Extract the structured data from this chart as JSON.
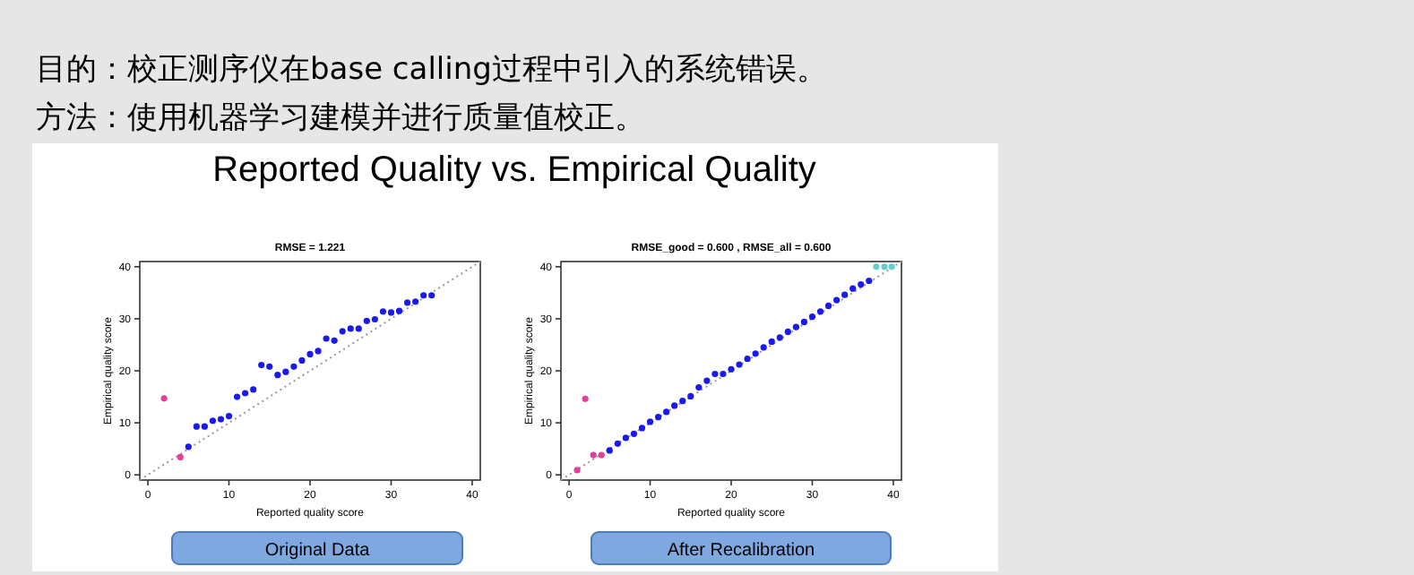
{
  "chart_data": [
    {
      "type": "scatter",
      "title": "Reported Quality vs. Empirical Quality",
      "subtitle": "RMSE = 1.221",
      "xlabel": "Reported quality score",
      "ylabel": "Empirical quality score",
      "annotations": [
        "目的：校正测序仪在base calling过程中引入的系统错误。",
        "方法：使用机器学习建模并进行质量值校正。",
        "Original Data"
      ],
      "xlim": [
        -1,
        41
      ],
      "ylim": [
        -1,
        41
      ],
      "xticks": [
        0,
        10,
        20,
        30,
        40
      ],
      "yticks": [
        0,
        10,
        20,
        30,
        40
      ],
      "marker": "circle",
      "series": [
        {
          "type": "line",
          "color": "#999999",
          "line_style": "dotted",
          "marker": "none",
          "x": [
            -1,
            41
          ],
          "values": [
            -1,
            41
          ]
        },
        {
          "color": "#e0409a",
          "x": [
            2,
            4
          ],
          "values": [
            14.7,
            3.4
          ]
        },
        {
          "color": "#1a1aee",
          "x": [
            5,
            6,
            7,
            8,
            9,
            10,
            11,
            12,
            13,
            14,
            15,
            16,
            17,
            18,
            19,
            20,
            21,
            22,
            23,
            24,
            25,
            26,
            27,
            28,
            29,
            30,
            31,
            32,
            33,
            34,
            35
          ],
          "values": [
            5.4,
            9.3,
            9.3,
            10.4,
            10.7,
            11.3,
            15.0,
            15.7,
            16.4,
            21.1,
            20.8,
            19.2,
            19.8,
            20.8,
            22.0,
            23.2,
            23.8,
            26.2,
            25.8,
            27.6,
            28.1,
            28.1,
            29.6,
            29.9,
            31.4,
            31.2,
            31.5,
            33.1,
            33.3,
            34.5,
            34.5
          ]
        }
      ]
    },
    {
      "type": "scatter",
      "subtitle": "RMSE_good = 0.600 , RMSE_all = 0.600",
      "xlabel": "Reported quality score",
      "ylabel": "Empirical quality score",
      "annotations": [
        "After Recalibration"
      ],
      "xlim": [
        -1,
        41
      ],
      "ylim": [
        -1,
        41
      ],
      "xticks": [
        0,
        10,
        20,
        30,
        40
      ],
      "yticks": [
        0,
        10,
        20,
        30,
        40
      ],
      "marker": "circle",
      "series": [
        {
          "type": "line",
          "color": "#999999",
          "line_style": "dotted",
          "marker": "none",
          "x": [
            -1,
            41
          ],
          "values": [
            -1,
            41
          ]
        },
        {
          "color": "#e0409a",
          "x": [
            1,
            2,
            3,
            4
          ],
          "values": [
            0.9,
            14.6,
            3.8,
            3.8
          ]
        },
        {
          "color": "#1a1aee",
          "x": [
            5,
            6,
            7,
            8,
            9,
            10,
            11,
            12,
            13,
            14,
            15,
            16,
            17,
            18,
            19,
            20,
            21,
            22,
            23,
            24,
            25,
            26,
            27,
            28,
            29,
            30,
            31,
            32,
            33,
            34,
            35,
            36,
            37
          ],
          "values": [
            4.7,
            6.0,
            7.1,
            7.9,
            9.0,
            10.2,
            11.1,
            12.1,
            13.3,
            14.2,
            15.1,
            16.8,
            18.1,
            19.4,
            19.4,
            20.3,
            21.2,
            22.3,
            23.3,
            24.5,
            25.6,
            26.4,
            27.5,
            28.4,
            29.4,
            30.4,
            31.4,
            32.5,
            33.6,
            34.6,
            35.8,
            36.6,
            37.3
          ]
        },
        {
          "color": "#66cccc",
          "x": [
            37.9,
            38.9,
            39.8
          ],
          "values": [
            40,
            40,
            40
          ]
        }
      ]
    }
  ]
}
